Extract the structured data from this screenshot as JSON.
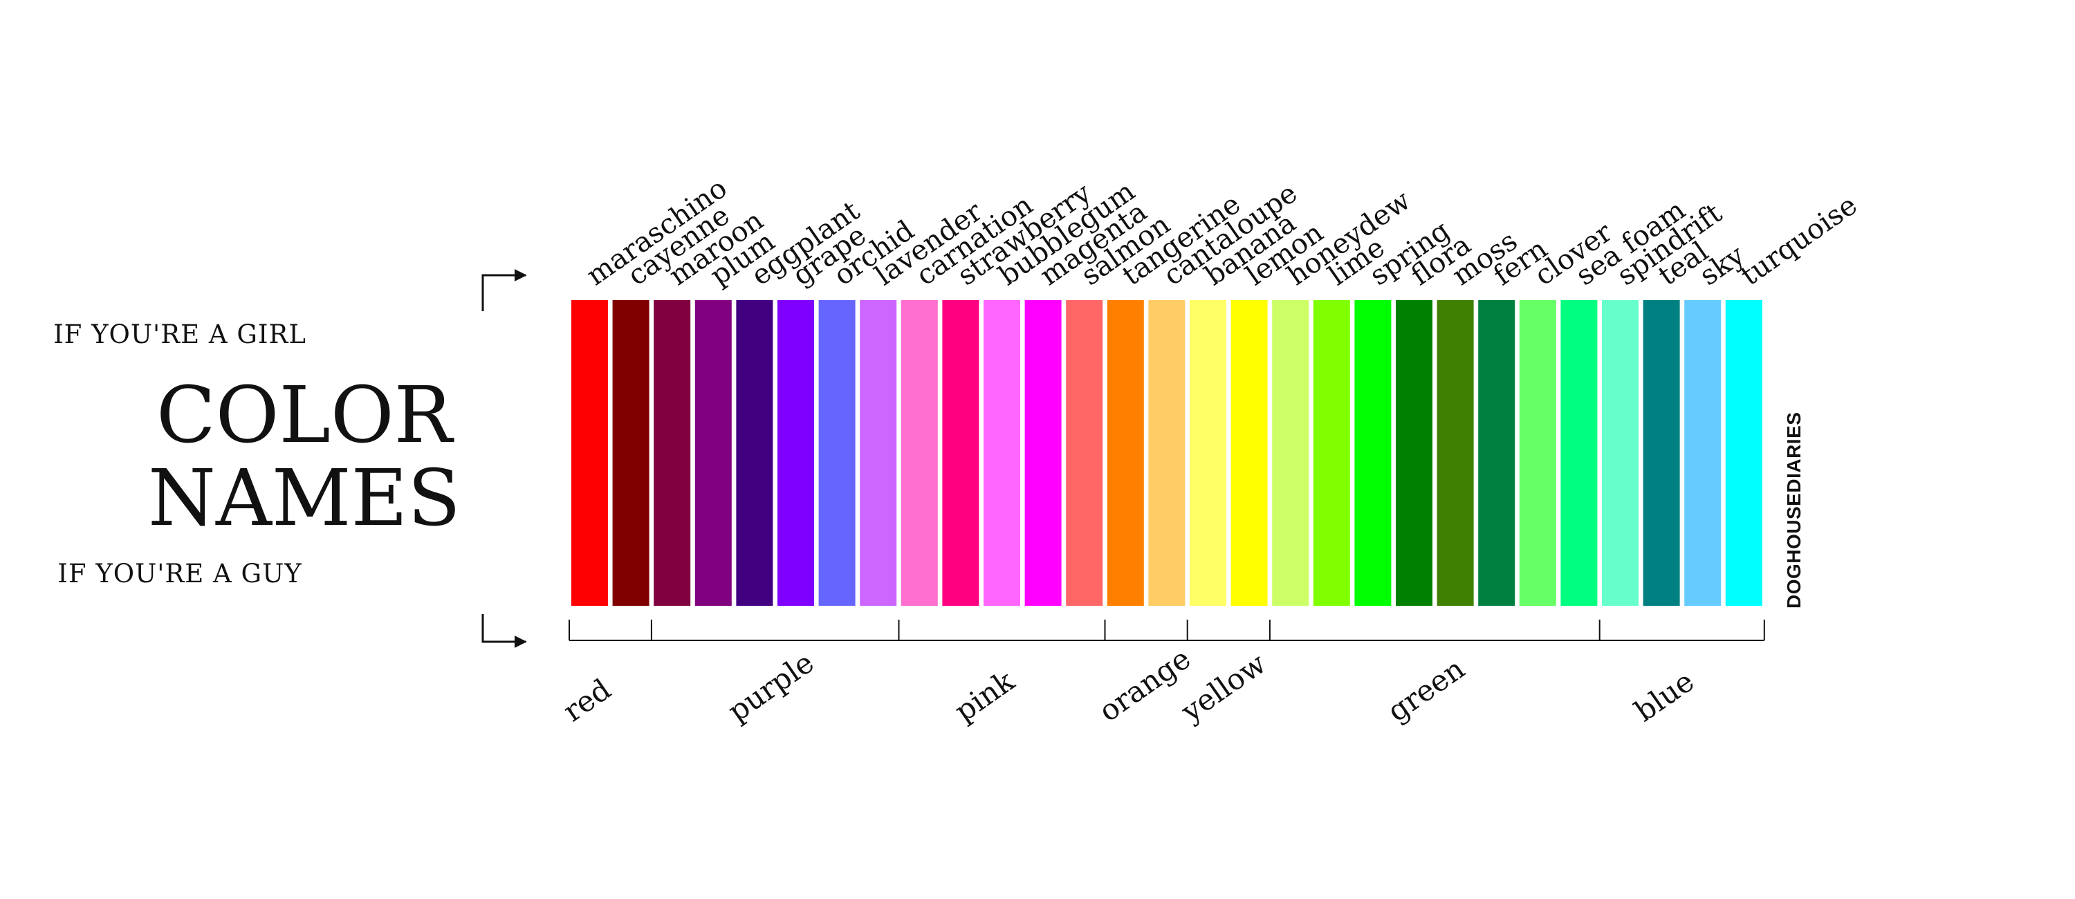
{
  "header": {
    "girl_label": "IF YOU'RE A GIRL",
    "title_line1": "COLOR",
    "title_line2": "NAMES",
    "guy_label": "IF YOU'RE A GUY"
  },
  "credit": "DOGHOUSEDIARIES",
  "girl_colors": [
    {
      "name": "maraschino",
      "color": "#ff0000"
    },
    {
      "name": "cayenne",
      "color": "#800000"
    },
    {
      "name": "maroon",
      "color": "#800040"
    },
    {
      "name": "plum",
      "color": "#800080"
    },
    {
      "name": "eggplant",
      "color": "#400080"
    },
    {
      "name": "grape",
      "color": "#8000ff"
    },
    {
      "name": "orchid",
      "color": "#6666ff"
    },
    {
      "name": "lavender",
      "color": "#cc66ff"
    },
    {
      "name": "carnation",
      "color": "#ff6fcf"
    },
    {
      "name": "strawberry",
      "color": "#ff0080"
    },
    {
      "name": "bubblegum",
      "color": "#ff66ff"
    },
    {
      "name": "magenta",
      "color": "#ff00ff"
    },
    {
      "name": "salmon",
      "color": "#ff6666"
    },
    {
      "name": "tangerine",
      "color": "#ff8000"
    },
    {
      "name": "cantaloupe",
      "color": "#ffcc66"
    },
    {
      "name": "banana",
      "color": "#ffff66"
    },
    {
      "name": "lemon",
      "color": "#ffff00"
    },
    {
      "name": "honeydew",
      "color": "#ccff66"
    },
    {
      "name": "lime",
      "color": "#80ff00"
    },
    {
      "name": "spring",
      "color": "#00ff00"
    },
    {
      "name": "flora",
      "color": "#008000"
    },
    {
      "name": "moss",
      "color": "#408000"
    },
    {
      "name": "fern",
      "color": "#008040"
    },
    {
      "name": "clover",
      "color": "#66ff66"
    },
    {
      "name": "sea foam",
      "color": "#00ff80"
    },
    {
      "name": "spindrift",
      "color": "#66ffcc"
    },
    {
      "name": "teal",
      "color": "#008080"
    },
    {
      "name": "sky",
      "color": "#66ccff"
    },
    {
      "name": "turquoise",
      "color": "#00ffff"
    }
  ],
  "guy_colors": [
    {
      "name": "red",
      "span": [
        0,
        1
      ]
    },
    {
      "name": "purple",
      "span": [
        2,
        7
      ]
    },
    {
      "name": "pink",
      "span": [
        8,
        12
      ]
    },
    {
      "name": "orange",
      "span": [
        13,
        14
      ]
    },
    {
      "name": "yellow",
      "span": [
        15,
        16
      ]
    },
    {
      "name": "green",
      "span": [
        17,
        24
      ]
    },
    {
      "name": "blue",
      "span": [
        25,
        28
      ]
    }
  ]
}
